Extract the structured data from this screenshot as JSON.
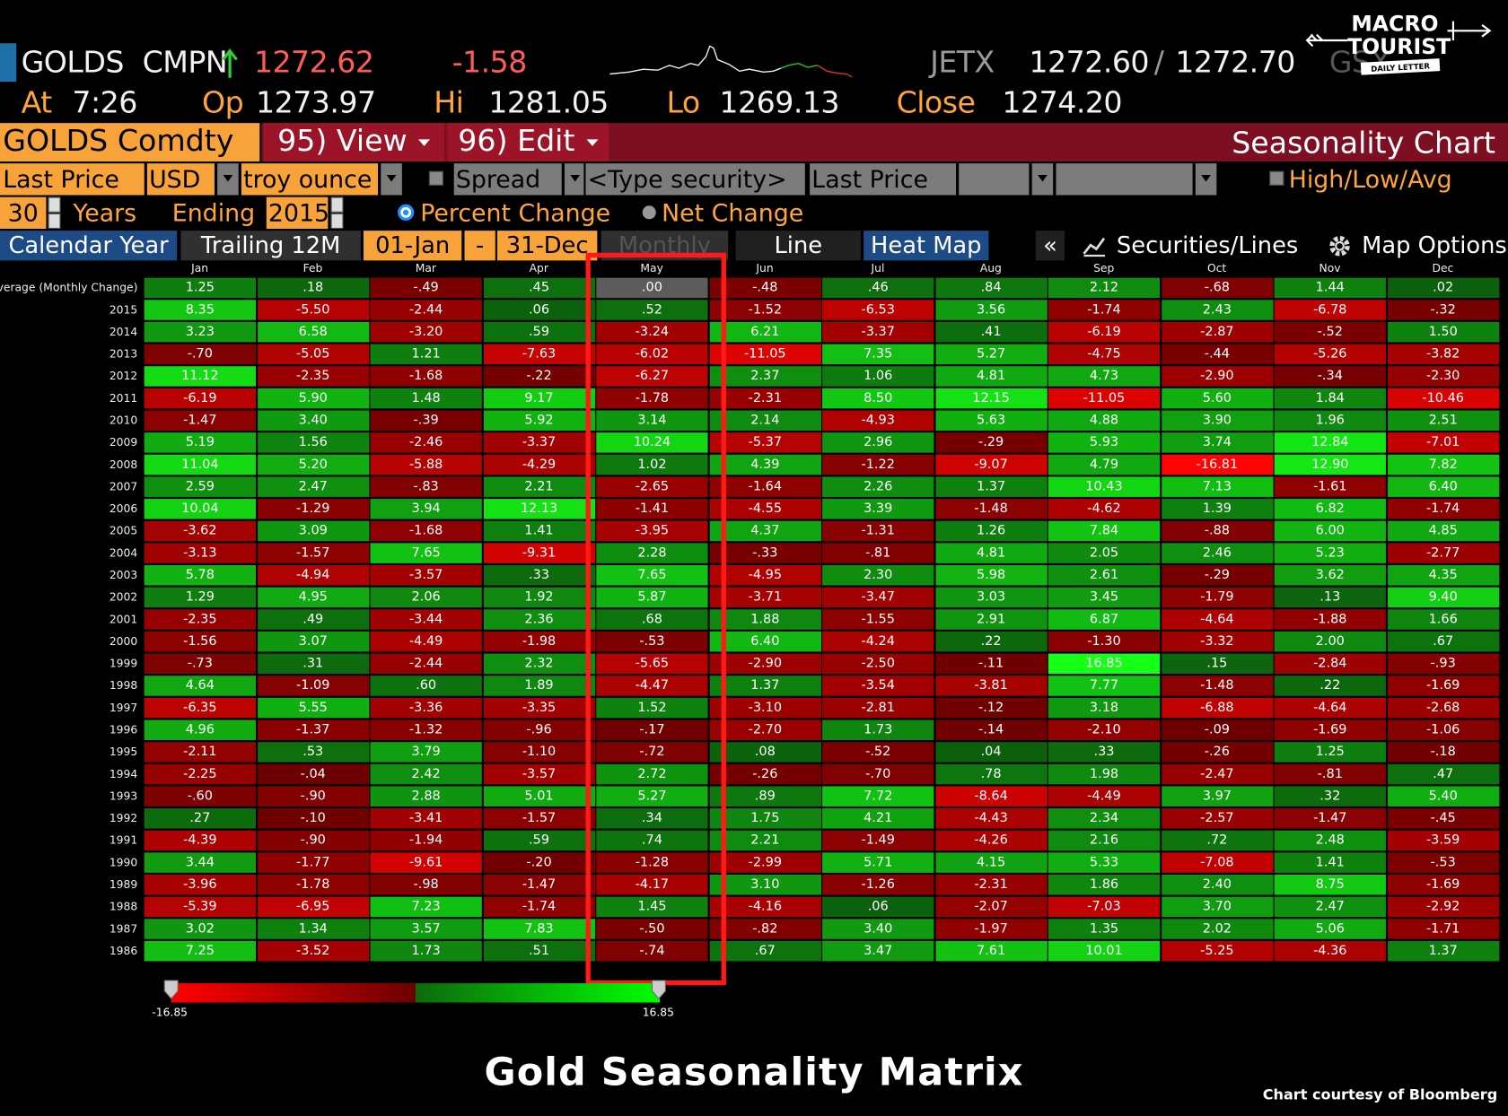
{
  "quote": {
    "ticker": "GOLDS",
    "source": "CMPN",
    "last": "1272.62",
    "change": "-1.58",
    "exchange": "JETX",
    "bid": "1272.60",
    "separator": "/",
    "ask": "1272.70",
    "extra": "GSX",
    "time_label": "At",
    "time": "7:26",
    "open_label": "Op",
    "open": "1273.97",
    "high_label": "Hi",
    "high": "1281.05",
    "low_label": "Lo",
    "low": "1269.13",
    "close_label": "Close",
    "close": "1274.20"
  },
  "logo": {
    "line1": "MACRO",
    "line2": "TOURIST",
    "tagline": "DAILY LETTER"
  },
  "toolbar": {
    "security": "GOLDS Comdty",
    "view": "95) View",
    "edit": "96) Edit",
    "title": "Seasonality Chart"
  },
  "settings": {
    "field": "Last Price",
    "currency": "USD",
    "unit": "troy ounce",
    "spread": "Spread",
    "security": "<Type security>",
    "field2": "Last Price",
    "high_low_avg": "High/Low/Avg",
    "years": "30",
    "years_label": "Years",
    "ending_label": "Ending",
    "ending": "2015",
    "percent_change": "Percent Change",
    "net_change": "Net Change"
  },
  "tabs": {
    "calendar_year": "Calendar Year",
    "trailing": "Trailing 12M",
    "start": "01-Jan",
    "dash": "-",
    "end": "31-Dec",
    "period": "Monthly",
    "line": "Line",
    "heat_map": "Heat Map",
    "collapse": "«",
    "securities": "Securities/Lines",
    "map_options": "Map Options"
  },
  "table": {
    "columns": [
      "Jan",
      "Feb",
      "Mar",
      "Apr",
      "May",
      "Jun",
      "Jul",
      "Aug",
      "Sep",
      "Oct",
      "Nov",
      "Dec"
    ],
    "rows": [
      {
        "label": "Average (Monthly Change)",
        "cells": [
          "1.25",
          ".18",
          "-.49",
          ".45",
          ".00",
          "-.48",
          ".46",
          ".84",
          "2.12",
          "-.68",
          "1.44",
          ".02"
        ]
      },
      {
        "label": "2015",
        "cells": [
          "8.35",
          "-5.50",
          "-2.44",
          ".06",
          ".52",
          "-1.52",
          "-6.53",
          "3.56",
          "-1.74",
          "2.43",
          "-6.78",
          "-.32"
        ]
      },
      {
        "label": "2014",
        "cells": [
          "3.23",
          "6.58",
          "-3.20",
          ".59",
          "-3.24",
          "6.21",
          "-3.37",
          ".41",
          "-6.19",
          "-2.87",
          "-.52",
          "1.50"
        ]
      },
      {
        "label": "2013",
        "cells": [
          "-.70",
          "-5.05",
          "1.21",
          "-7.63",
          "-6.02",
          "-11.05",
          "7.35",
          "5.27",
          "-4.75",
          "-.44",
          "-5.26",
          "-3.82"
        ]
      },
      {
        "label": "2012",
        "cells": [
          "11.12",
          "-2.35",
          "-1.68",
          "-.22",
          "-6.27",
          "2.37",
          "1.06",
          "4.81",
          "4.73",
          "-2.90",
          "-.34",
          "-2.30"
        ]
      },
      {
        "label": "2011",
        "cells": [
          "-6.19",
          "5.90",
          "1.48",
          "9.17",
          "-1.78",
          "-2.31",
          "8.50",
          "12.15",
          "-11.05",
          "5.60",
          "1.84",
          "-10.46"
        ]
      },
      {
        "label": "2010",
        "cells": [
          "-1.47",
          "3.40",
          "-.39",
          "5.92",
          "3.14",
          "2.14",
          "-4.93",
          "5.63",
          "4.88",
          "3.90",
          "1.96",
          "2.51"
        ]
      },
      {
        "label": "2009",
        "cells": [
          "5.19",
          "1.56",
          "-2.46",
          "-3.37",
          "10.24",
          "-5.37",
          "2.96",
          "-.29",
          "5.93",
          "3.74",
          "12.84",
          "-7.01"
        ]
      },
      {
        "label": "2008",
        "cells": [
          "11.04",
          "5.20",
          "-5.88",
          "-4.29",
          "1.02",
          "4.39",
          "-1.22",
          "-9.07",
          "4.79",
          "-16.81",
          "12.90",
          "7.82"
        ]
      },
      {
        "label": "2007",
        "cells": [
          "2.59",
          "2.47",
          "-.83",
          "2.21",
          "-2.65",
          "-1.64",
          "2.26",
          "1.37",
          "10.43",
          "7.13",
          "-1.61",
          "6.40"
        ]
      },
      {
        "label": "2006",
        "cells": [
          "10.04",
          "-1.29",
          "3.94",
          "12.13",
          "-1.41",
          "-4.55",
          "3.39",
          "-1.48",
          "-4.62",
          "1.39",
          "6.82",
          "-1.74"
        ]
      },
      {
        "label": "2005",
        "cells": [
          "-3.62",
          "3.09",
          "-1.68",
          "1.41",
          "-3.95",
          "4.37",
          "-1.31",
          "1.26",
          "7.84",
          "-.88",
          "6.00",
          "4.85"
        ]
      },
      {
        "label": "2004",
        "cells": [
          "-3.13",
          "-1.57",
          "7.65",
          "-9.31",
          "2.28",
          "-.33",
          "-.81",
          "4.81",
          "2.05",
          "2.46",
          "5.23",
          "-2.77"
        ]
      },
      {
        "label": "2003",
        "cells": [
          "5.78",
          "-4.94",
          "-3.57",
          ".33",
          "7.65",
          "-4.95",
          "2.30",
          "5.98",
          "2.61",
          "-.29",
          "3.62",
          "4.35"
        ]
      },
      {
        "label": "2002",
        "cells": [
          "1.29",
          "4.95",
          "2.06",
          "1.92",
          "5.87",
          "-3.71",
          "-3.47",
          "3.03",
          "3.45",
          "-1.79",
          ".13",
          "9.40"
        ]
      },
      {
        "label": "2001",
        "cells": [
          "-2.35",
          ".49",
          "-3.44",
          "2.36",
          ".68",
          "1.88",
          "-1.55",
          "2.91",
          "6.87",
          "-4.64",
          "-1.88",
          "1.66"
        ]
      },
      {
        "label": "2000",
        "cells": [
          "-1.56",
          "3.07",
          "-4.49",
          "-1.98",
          "-.53",
          "6.40",
          "-4.24",
          ".22",
          "-1.30",
          "-3.32",
          "2.00",
          ".67"
        ]
      },
      {
        "label": "1999",
        "cells": [
          "-.73",
          ".31",
          "-2.44",
          "2.32",
          "-5.65",
          "-2.90",
          "-2.50",
          "-.11",
          "16.85",
          ".15",
          "-2.84",
          "-.93"
        ]
      },
      {
        "label": "1998",
        "cells": [
          "4.64",
          "-1.09",
          ".60",
          "1.89",
          "-4.47",
          "1.37",
          "-3.54",
          "-3.81",
          "7.77",
          "-1.48",
          ".22",
          "-1.69"
        ]
      },
      {
        "label": "1997",
        "cells": [
          "-6.35",
          "5.55",
          "-3.36",
          "-3.35",
          "1.52",
          "-3.10",
          "-2.81",
          "-.12",
          "3.18",
          "-6.88",
          "-4.64",
          "-2.68"
        ]
      },
      {
        "label": "1996",
        "cells": [
          "4.96",
          "-1.37",
          "-1.32",
          "-.96",
          "-.17",
          "-2.70",
          "1.73",
          "-.14",
          "-2.10",
          "-.09",
          "-1.69",
          "-1.06"
        ]
      },
      {
        "label": "1995",
        "cells": [
          "-2.11",
          ".53",
          "3.79",
          "-1.10",
          "-.72",
          ".08",
          "-.52",
          ".04",
          ".33",
          "-.26",
          "1.25",
          "-.18"
        ]
      },
      {
        "label": "1994",
        "cells": [
          "-2.25",
          "-.04",
          "2.42",
          "-3.57",
          "2.72",
          "-.26",
          "-.70",
          ".78",
          "1.98",
          "-2.47",
          "-.81",
          ".47"
        ]
      },
      {
        "label": "1993",
        "cells": [
          "-.60",
          "-.90",
          "2.88",
          "5.01",
          "5.27",
          ".89",
          "7.72",
          "-8.64",
          "-4.49",
          "3.97",
          ".32",
          "5.40"
        ]
      },
      {
        "label": "1992",
        "cells": [
          ".27",
          "-.10",
          "-3.41",
          "-1.57",
          ".34",
          "1.75",
          "4.21",
          "-4.43",
          "2.34",
          "-2.57",
          "-1.47",
          "-.45"
        ]
      },
      {
        "label": "1991",
        "cells": [
          "-4.39",
          "-.90",
          "-1.94",
          ".59",
          ".74",
          "2.21",
          "-1.49",
          "-4.26",
          "2.16",
          ".72",
          "2.48",
          "-3.59"
        ]
      },
      {
        "label": "1990",
        "cells": [
          "3.44",
          "-1.77",
          "-9.61",
          "-.20",
          "-1.28",
          "-2.99",
          "5.71",
          "4.15",
          "5.33",
          "-7.08",
          "1.41",
          "-.53"
        ]
      },
      {
        "label": "1989",
        "cells": [
          "-3.96",
          "-1.78",
          "-.98",
          "-1.47",
          "-4.17",
          "3.10",
          "-1.26",
          "-2.31",
          "1.86",
          "2.40",
          "8.75",
          "-1.69"
        ]
      },
      {
        "label": "1988",
        "cells": [
          "-5.39",
          "-6.95",
          "7.23",
          "-1.74",
          "1.45",
          "-4.16",
          ".06",
          "-2.07",
          "-7.03",
          "3.70",
          "2.47",
          "-2.92"
        ]
      },
      {
        "label": "1987",
        "cells": [
          "3.02",
          "1.34",
          "3.57",
          "7.83",
          "-.50",
          "-.82",
          "3.40",
          "-1.97",
          "1.35",
          "2.02",
          "5.06",
          "-1.71"
        ]
      },
      {
        "label": "1986",
        "cells": [
          "7.25",
          "-3.52",
          "1.73",
          ".51",
          "-.74",
          ".67",
          "3.47",
          "7.61",
          "10.01",
          "-5.25",
          "-4.36",
          "1.37"
        ]
      }
    ]
  },
  "scale": {
    "min": "-16.85",
    "max": "16.85"
  },
  "footer": {
    "title": "Gold Seasonality Matrix",
    "credit": "Chart courtesy of Bloomberg"
  }
}
